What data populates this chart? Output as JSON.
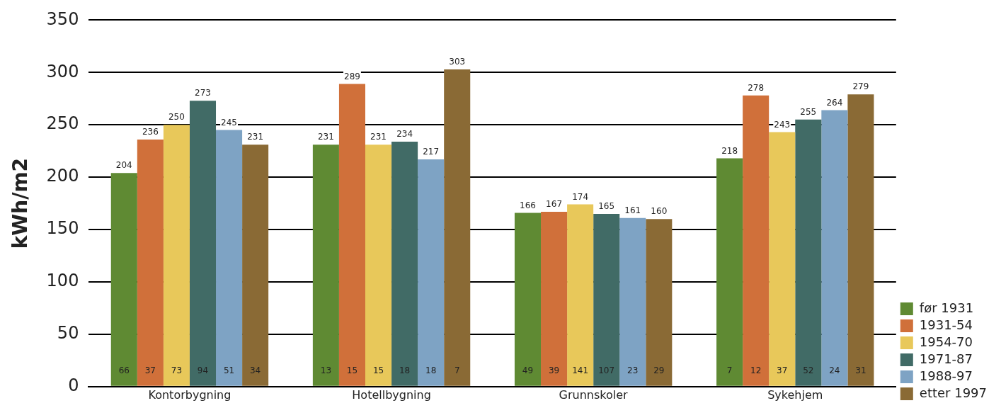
{
  "chart_data": {
    "type": "bar",
    "ylabel": "kWh/m2",
    "categories": [
      "Kontorbygning",
      "Hotellbygning",
      "Grunnskoler",
      "Sykehjem"
    ],
    "series": [
      {
        "name": "før 1931",
        "color": "#5f8a33",
        "values": [
          204,
          231,
          166,
          218
        ]
      },
      {
        "name": "1931-54",
        "color": "#d0703a",
        "values": [
          236,
          289,
          167,
          278
        ]
      },
      {
        "name": "1954-70",
        "color": "#e8c85a",
        "values": [
          250,
          231,
          174,
          243
        ]
      },
      {
        "name": "1971-87",
        "color": "#416b66",
        "values": [
          273,
          234,
          165,
          255
        ]
      },
      {
        "name": "1988-97",
        "color": "#7ea3c4",
        "values": [
          245,
          217,
          161,
          264
        ]
      },
      {
        "name": "etter 1997",
        "color": "#8a6a35",
        "values": [
          231,
          303,
          160,
          279
        ]
      }
    ],
    "ylim": [
      0,
      350
    ],
    "yticks": [
      0,
      50,
      100,
      150,
      200,
      250,
      300,
      350
    ],
    "grid": "y",
    "legend": "right",
    "data_labels": true,
    "annotations": [
      "66",
      "37",
      "73",
      "94",
      "51",
      "34",
      "13",
      "15",
      "15",
      "18",
      "18",
      "7",
      "49",
      "39",
      "141",
      "107",
      "23",
      "29",
      "7",
      "12",
      "37",
      "52",
      "24",
      "31"
    ]
  }
}
